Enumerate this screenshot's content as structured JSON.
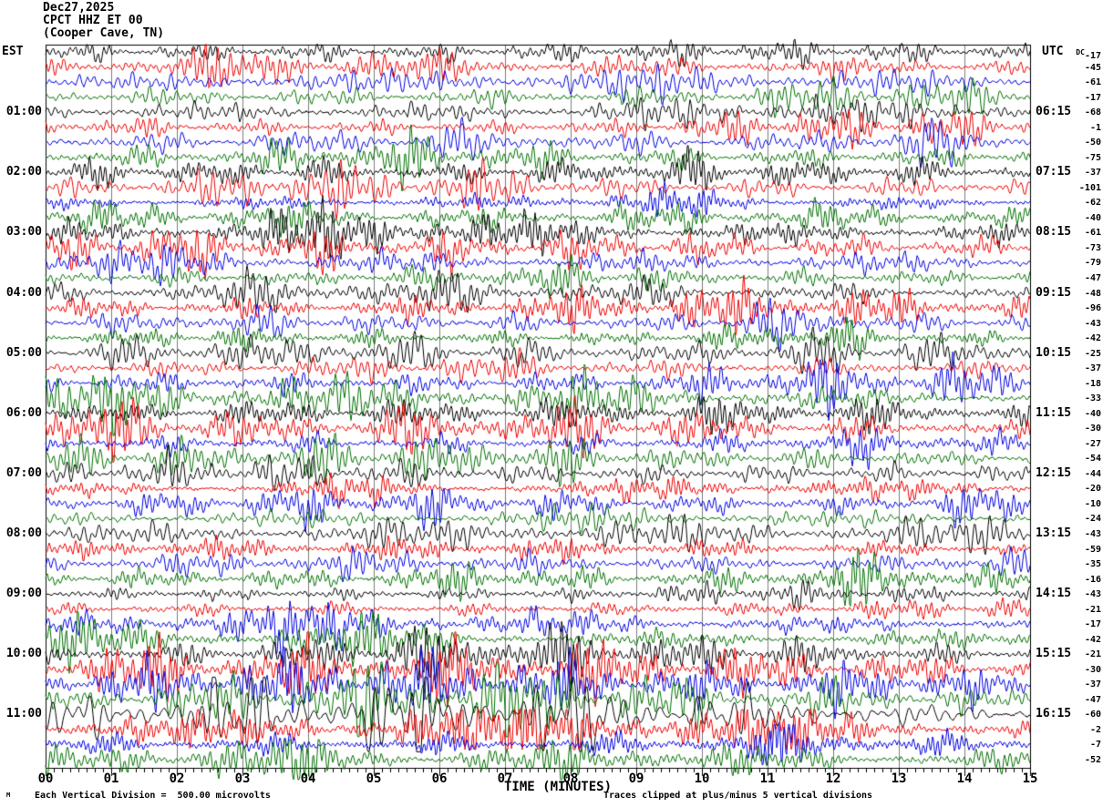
{
  "header": {
    "date": "Dec27,2025",
    "station_line": "CPCT HHZ ET 00",
    "location_line": "(Cooper Cave, TN)"
  },
  "left_axis": {
    "zone_label": "EST"
  },
  "right_axis": {
    "zone_label": "UTC",
    "dc_label": "DC"
  },
  "bottom_axis": {
    "title": "TIME (MINUTES)",
    "scale_note": "Each Vertical Division =  500.00 microvolts",
    "clip_note": "Traces clipped at plus/minus 5 vertical divisions",
    "corner_mark": "M"
  },
  "chart_data": {
    "type": "line",
    "variant": "helicorder-seismogram",
    "title": "Dec27,2025 CPCT HHZ ET 00 (Cooper Cave, TN)",
    "xlabel": "TIME (MINUTES)",
    "x_range_minutes": [
      0,
      15
    ],
    "x_tick_labels": [
      "00",
      "01",
      "02",
      "03",
      "04",
      "05",
      "06",
      "07",
      "08",
      "09",
      "10",
      "11",
      "12",
      "13",
      "14",
      "15"
    ],
    "rows_total": 48,
    "traces_per_hour": 4,
    "minutes_per_row": 15,
    "trace_cycle_colors": [
      "#000000",
      "#ee0000",
      "#0000e0",
      "#007000"
    ],
    "grid_color": "#7d7d7d",
    "grid_on": true,
    "left_hour_labels": {
      "first_row_index": 4,
      "row_step": 4,
      "labels": [
        "01:00",
        "02:00",
        "03:00",
        "04:00",
        "05:00",
        "06:00",
        "07:00",
        "08:00",
        "09:00",
        "10:00",
        "11:00"
      ]
    },
    "right_hour_labels": {
      "first_row_index": 4,
      "row_step": 4,
      "labels": [
        "06:15",
        "07:15",
        "08:15",
        "09:15",
        "10:15",
        "11:15",
        "12:15",
        "13:15",
        "14:15",
        "15:15",
        "16:15"
      ]
    },
    "dc_offsets_per_row": [
      -17,
      -45,
      -61,
      -17,
      -68,
      -1,
      -50,
      -75,
      -37,
      -101,
      -62,
      -40,
      -61,
      -73,
      -79,
      -47,
      -48,
      -96,
      -43,
      -42,
      -25,
      -37,
      -18,
      -33,
      -40,
      -30,
      -27,
      -54,
      -44,
      -20,
      -10,
      -24,
      -43,
      -59,
      -35,
      -16,
      -43,
      -21,
      -17,
      -42,
      -21,
      -30,
      -37,
      -47,
      -60,
      -2,
      -7,
      -52
    ],
    "vertical_division_microvolts": 500.0,
    "clip_divisions": 5,
    "waveform_note": "continuous seismic background noise, procedurally generated",
    "seed": 1227
  }
}
